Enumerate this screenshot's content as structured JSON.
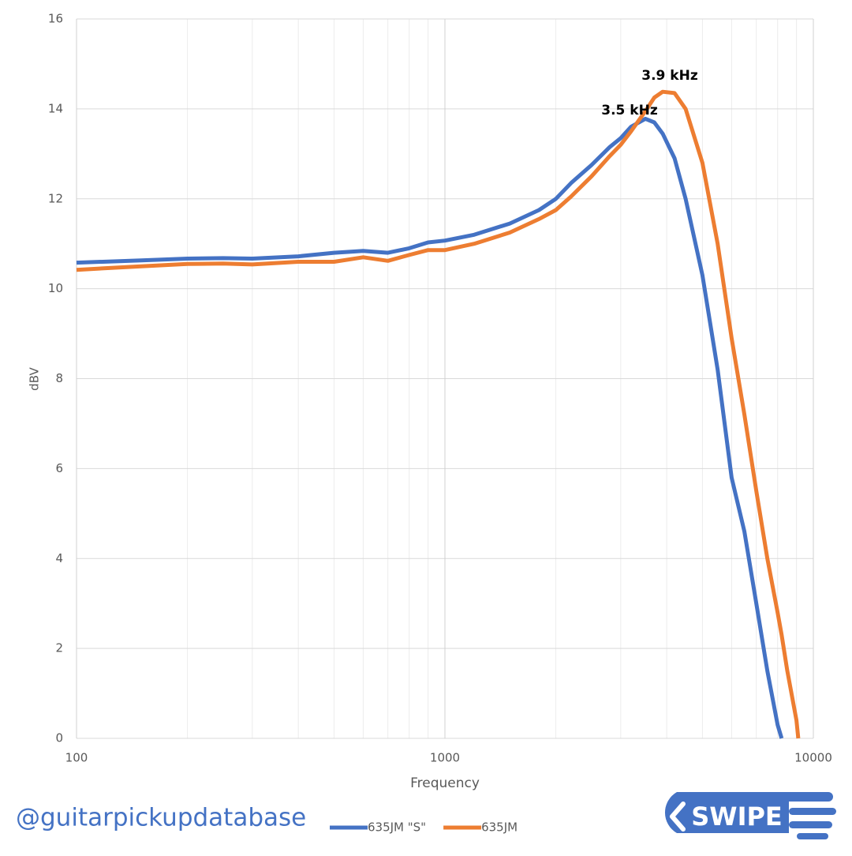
{
  "chart_data": {
    "type": "line",
    "x_label": "Frequency",
    "y_label": "dBV",
    "x": [
      100,
      150,
      200,
      250,
      300,
      400,
      500,
      600,
      700,
      800,
      900,
      1000,
      1200,
      1500,
      1800,
      2000,
      2200,
      2500,
      2800,
      3000,
      3200,
      3500,
      3700,
      3900,
      4200,
      4500,
      5000,
      5500,
      6000,
      6500,
      7000,
      7500,
      8000,
      8200,
      8500,
      9000,
      9100
    ],
    "series": [
      {
        "name": "635JM \"S\"",
        "color": "#4472c4",
        "values": [
          10.58,
          10.63,
          10.67,
          10.68,
          10.67,
          10.72,
          10.8,
          10.84,
          10.8,
          10.9,
          11.03,
          11.07,
          11.2,
          11.45,
          11.75,
          12.0,
          12.35,
          12.75,
          13.15,
          13.35,
          13.6,
          13.78,
          13.7,
          13.45,
          12.9,
          12.0,
          10.3,
          8.2,
          5.8,
          4.6,
          3.0,
          1.5,
          0.3,
          0,
          null,
          null,
          null
        ]
      },
      {
        "name": "635JM",
        "color": "#ed7d31",
        "values": [
          10.42,
          10.5,
          10.55,
          10.56,
          10.54,
          10.6,
          10.6,
          10.7,
          10.62,
          10.75,
          10.86,
          10.86,
          11.0,
          11.25,
          11.55,
          11.75,
          12.05,
          12.5,
          12.95,
          13.2,
          13.5,
          13.95,
          14.25,
          14.38,
          14.35,
          14.0,
          12.8,
          11.0,
          8.9,
          7.2,
          5.5,
          4.0,
          2.8,
          2.3,
          1.5,
          0.4,
          0
        ]
      }
    ],
    "annotations": [
      "3.9 kHz",
      "3.5 kHz"
    ],
    "xlim": [
      100,
      10000
    ],
    "xticks": [
      100,
      1000,
      10000
    ],
    "x_scale": "log",
    "ylim": [
      0,
      16
    ],
    "yticks": [
      0,
      2,
      4,
      6,
      8,
      10,
      12,
      14,
      16
    ],
    "grid": true,
    "legend": "bottom"
  },
  "watermark": "@guitarpickupdatabase",
  "button": "SWIPE"
}
